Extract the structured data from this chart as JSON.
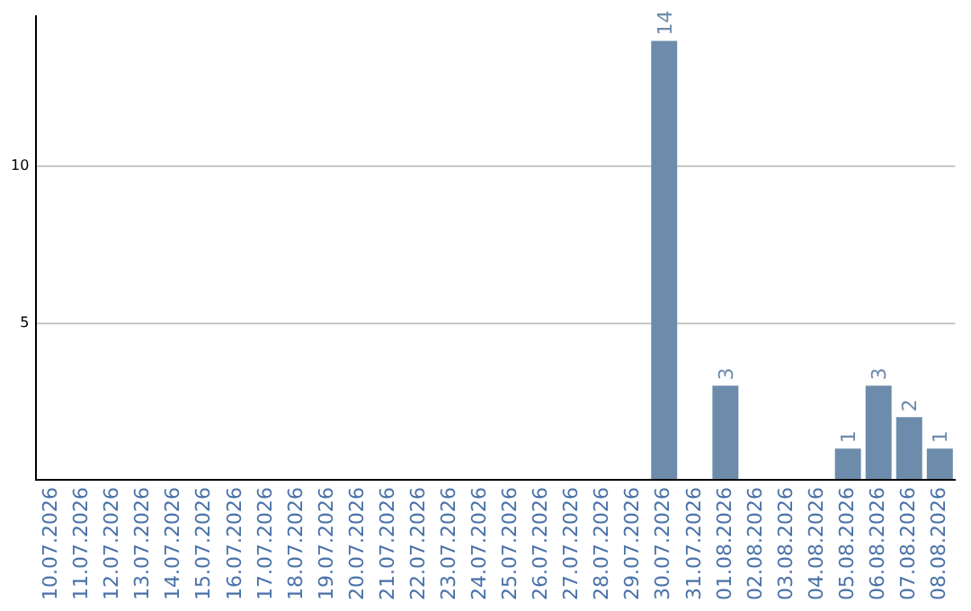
{
  "chart_data": {
    "type": "bar",
    "categories": [
      "10.07.2026",
      "11.07.2026",
      "12.07.2026",
      "13.07.2026",
      "14.07.2026",
      "15.07.2026",
      "16.07.2026",
      "17.07.2026",
      "18.07.2026",
      "19.07.2026",
      "20.07.2026",
      "21.07.2026",
      "22.07.2026",
      "23.07.2026",
      "24.07.2026",
      "25.07.2026",
      "26.07.2026",
      "27.07.2026",
      "28.07.2026",
      "29.07.2026",
      "30.07.2026",
      "31.07.2026",
      "01.08.2026",
      "02.08.2026",
      "03.08.2026",
      "04.08.2026",
      "05.08.2026",
      "06.08.2026",
      "07.08.2026",
      "08.08.2026"
    ],
    "values": [
      null,
      null,
      null,
      null,
      null,
      null,
      null,
      null,
      null,
      null,
      null,
      null,
      null,
      null,
      null,
      null,
      null,
      null,
      null,
      null,
      14,
      null,
      3,
      null,
      null,
      null,
      1,
      3,
      2,
      1
    ],
    "color": "#6d8cab",
    "ylim": [
      0,
      14.8
    ],
    "yticks": [
      {
        "value": 0,
        "label": null
      },
      5,
      10
    ],
    "grid": "y",
    "data_labels": true,
    "legend": false
  }
}
